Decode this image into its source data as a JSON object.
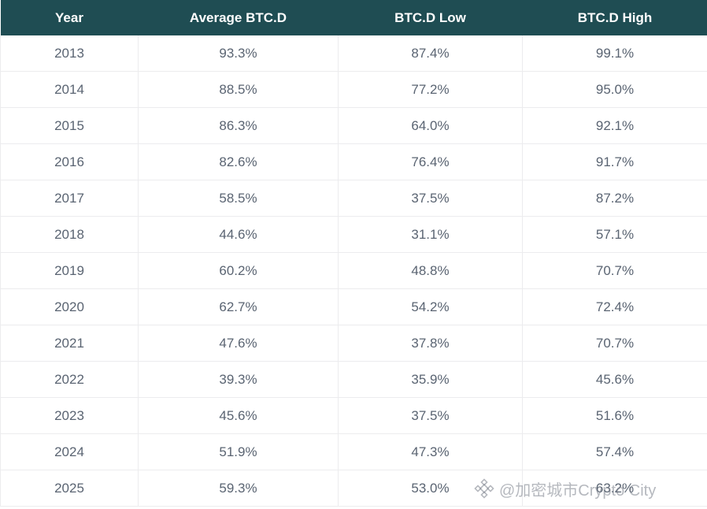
{
  "chart_data": {
    "type": "table",
    "columns": [
      "Year",
      "Average BTC.D",
      "BTC.D Low",
      "BTC.D High"
    ],
    "rows": [
      [
        "2013",
        "93.3%",
        "87.4%",
        "99.1%"
      ],
      [
        "2014",
        "88.5%",
        "77.2%",
        "95.0%"
      ],
      [
        "2015",
        "86.3%",
        "64.0%",
        "92.1%"
      ],
      [
        "2016",
        "82.6%",
        "76.4%",
        "91.7%"
      ],
      [
        "2017",
        "58.5%",
        "37.5%",
        "87.2%"
      ],
      [
        "2018",
        "44.6%",
        "31.1%",
        "57.1%"
      ],
      [
        "2019",
        "60.2%",
        "48.8%",
        "70.7%"
      ],
      [
        "2020",
        "62.7%",
        "54.2%",
        "72.4%"
      ],
      [
        "2021",
        "47.6%",
        "37.8%",
        "70.7%"
      ],
      [
        "2022",
        "39.3%",
        "35.9%",
        "45.6%"
      ],
      [
        "2023",
        "45.6%",
        "37.5%",
        "51.6%"
      ],
      [
        "2024",
        "51.9%",
        "47.3%",
        "57.4%"
      ],
      [
        "2025",
        "59.3%",
        "53.0%",
        "63.2%"
      ]
    ]
  },
  "watermark": {
    "text": "@加密城市Crypto City",
    "icon": "binance-logo-icon"
  },
  "colors": {
    "header_bg": "#1f4d53",
    "header_text": "#ffffff",
    "cell_text": "#5a6472",
    "grid": "#ececee"
  }
}
